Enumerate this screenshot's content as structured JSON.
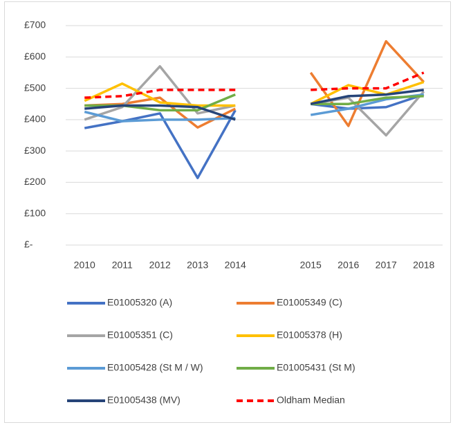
{
  "chart_data": {
    "type": "line",
    "categories": [
      "2010",
      "2011",
      "2012",
      "2013",
      "2014",
      null,
      "2015",
      "2016",
      "2017",
      "2018"
    ],
    "series": [
      {
        "name": "E01005320 (A)",
        "color": "#4472c4",
        "values": [
          373,
          395,
          420,
          214,
          430,
          null,
          450,
          435,
          440,
          480
        ]
      },
      {
        "name": "E01005349 (C)",
        "color": "#ed7d31",
        "values": [
          445,
          450,
          470,
          375,
          435,
          null,
          550,
          380,
          650,
          520
        ]
      },
      {
        "name": "E01005351 (C)",
        "color": "#a5a5a5",
        "values": [
          400,
          440,
          570,
          420,
          445,
          null,
          450,
          470,
          350,
          490
        ]
      },
      {
        "name": "E01005378 (H)",
        "color": "#ffc000",
        "values": [
          460,
          515,
          455,
          445,
          445,
          null,
          450,
          510,
          480,
          520
        ]
      },
      {
        "name": "E01005428 (St M / W)",
        "color": "#5b9bd5",
        "values": [
          425,
          395,
          400,
          400,
          405,
          null,
          415,
          435,
          465,
          480
        ]
      },
      {
        "name": "E01005431 (St M)",
        "color": "#70ad47",
        "values": [
          445,
          445,
          430,
          430,
          480,
          null,
          450,
          450,
          470,
          475
        ]
      },
      {
        "name": "E01005438 (MV)",
        "color": "#264478",
        "values": [
          435,
          445,
          445,
          440,
          400,
          null,
          450,
          475,
          480,
          495
        ]
      },
      {
        "name": "Oldham Median",
        "color": "#ff0000",
        "dashed": true,
        "values": [
          470,
          475,
          495,
          495,
          495,
          null,
          495,
          500,
          500,
          550
        ]
      }
    ],
    "ylim": [
      0,
      700
    ],
    "yticks": [
      {
        "value": 0,
        "label": "£-"
      },
      {
        "value": 100,
        "label": "£100"
      },
      {
        "value": 200,
        "label": "£200"
      },
      {
        "value": 300,
        "label": "£300"
      },
      {
        "value": 400,
        "label": "£400"
      },
      {
        "value": 500,
        "label": "£500"
      },
      {
        "value": 600,
        "label": "£600"
      },
      {
        "value": 700,
        "label": "£700"
      }
    ],
    "grid": true
  }
}
